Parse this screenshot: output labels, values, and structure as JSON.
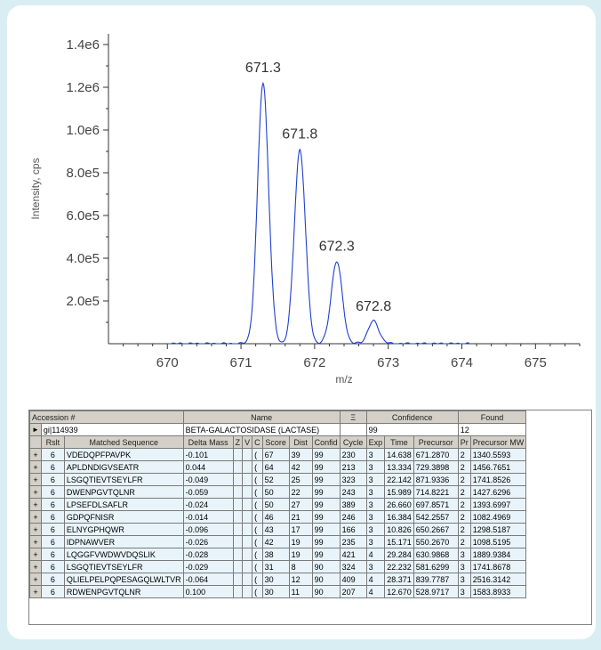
{
  "chart_data": {
    "type": "line",
    "title": "",
    "xlabel": "m/z",
    "ylabel": "Intensity, cps",
    "xlim": [
      669.2,
      675.6
    ],
    "ylim": [
      0,
      1450000.0
    ],
    "x_ticks": [
      670,
      671,
      672,
      673,
      674,
      675
    ],
    "y_ticks": [
      200000,
      400000,
      600000,
      800000,
      1000000,
      1200000,
      1400000
    ],
    "y_tick_labels": [
      "2.0e5",
      "4.0e5",
      "6.0e5",
      "8.0e5",
      "1.0e6",
      "1.2e6",
      "1.4e6"
    ],
    "peaks": [
      {
        "x": 671.3,
        "y": 1220000,
        "label": "671.3"
      },
      {
        "x": 671.8,
        "y": 910000,
        "label": "671.8"
      },
      {
        "x": 672.3,
        "y": 385000,
        "label": "672.3"
      },
      {
        "x": 672.8,
        "y": 105000,
        "label": "672.8"
      }
    ],
    "line_color": "#1f3fcf",
    "grid": false
  },
  "table": {
    "accession_header": "Accession #",
    "name_header": "Name",
    "sort_header": "Ξ",
    "confidence_header": "Confidence",
    "found_header": "Found",
    "row_marker": "►",
    "accession_value": "gi|114939",
    "name_value": "BETA-GALACTOSIDASE (LACTASE)",
    "confidence_value": "99",
    "found_value": "12",
    "columns": [
      "Rslt",
      "Matched Sequence",
      "Delta Mass",
      "Z",
      "V",
      "C",
      "Score",
      "Dist",
      "Confid",
      "Cycle",
      "Exp",
      "Time",
      "Precursor",
      "Pr",
      "Precursor MW"
    ],
    "expand_glyph": "+",
    "rows": [
      [
        "6",
        "VDEDQPFPAVPK",
        "-0.101",
        "",
        "",
        "(",
        "67",
        "39",
        "99",
        "230",
        "3",
        "14.638",
        "671.2870",
        "2",
        "1340.5593"
      ],
      [
        "6",
        "APLDNDIGVSEATR",
        "0.044",
        "",
        "",
        "(",
        "64",
        "42",
        "99",
        "213",
        "3",
        "13.334",
        "729.3898",
        "2",
        "1456.7651"
      ],
      [
        "6",
        "LSGQTIEVTSEYLFR",
        "-0.049",
        "",
        "",
        "(",
        "52",
        "25",
        "99",
        "323",
        "3",
        "22.142",
        "871.9336",
        "2",
        "1741.8526"
      ],
      [
        "6",
        "DWENPGVTQLNR",
        "-0.059",
        "",
        "",
        "(",
        "50",
        "22",
        "99",
        "243",
        "3",
        "15.989",
        "714.8221",
        "2",
        "1427.6296"
      ],
      [
        "6",
        "LPSEFDLSAFLR",
        "-0.024",
        "",
        "",
        "(",
        "50",
        "27",
        "99",
        "389",
        "3",
        "26.660",
        "697.8571",
        "2",
        "1393.6997"
      ],
      [
        "6",
        "GDPQFNISR",
        "-0.014",
        "",
        "",
        "(",
        "46",
        "21",
        "99",
        "246",
        "3",
        "16.384",
        "542.2557",
        "2",
        "1082.4969"
      ],
      [
        "6",
        "ELNYGPHQWR",
        "-0.096",
        "",
        "",
        "(",
        "43",
        "17",
        "99",
        "166",
        "3",
        "10.826",
        "650.2667",
        "2",
        "1298.5187"
      ],
      [
        "6",
        "IDPNAWVER",
        "-0.026",
        "",
        "",
        "(",
        "42",
        "19",
        "99",
        "235",
        "3",
        "15.171",
        "550.2670",
        "2",
        "1098.5195"
      ],
      [
        "6",
        "LQGGFVWDWVDQSLIK",
        "-0.028",
        "",
        "",
        "(",
        "38",
        "19",
        "99",
        "421",
        "4",
        "29.284",
        "630.9868",
        "3",
        "1889.9384"
      ],
      [
        "6",
        "LSGQTIEVTSEYLFR",
        "-0.029",
        "",
        "",
        "(",
        "31",
        "8",
        "90",
        "324",
        "3",
        "22.232",
        "581.6299",
        "3",
        "1741.8678"
      ],
      [
        "6",
        "QLIELPELPQPESAGQLWLTVR",
        "-0.064",
        "",
        "",
        "(",
        "30",
        "12",
        "90",
        "409",
        "4",
        "28.371",
        "839.7787",
        "3",
        "2516.3142"
      ],
      [
        "6",
        "RDWENPGVTQLNR",
        "0.100",
        "",
        "",
        "(",
        "30",
        "11",
        "90",
        "207",
        "4",
        "12.670",
        "528.9717",
        "3",
        "1583.8933"
      ]
    ]
  }
}
